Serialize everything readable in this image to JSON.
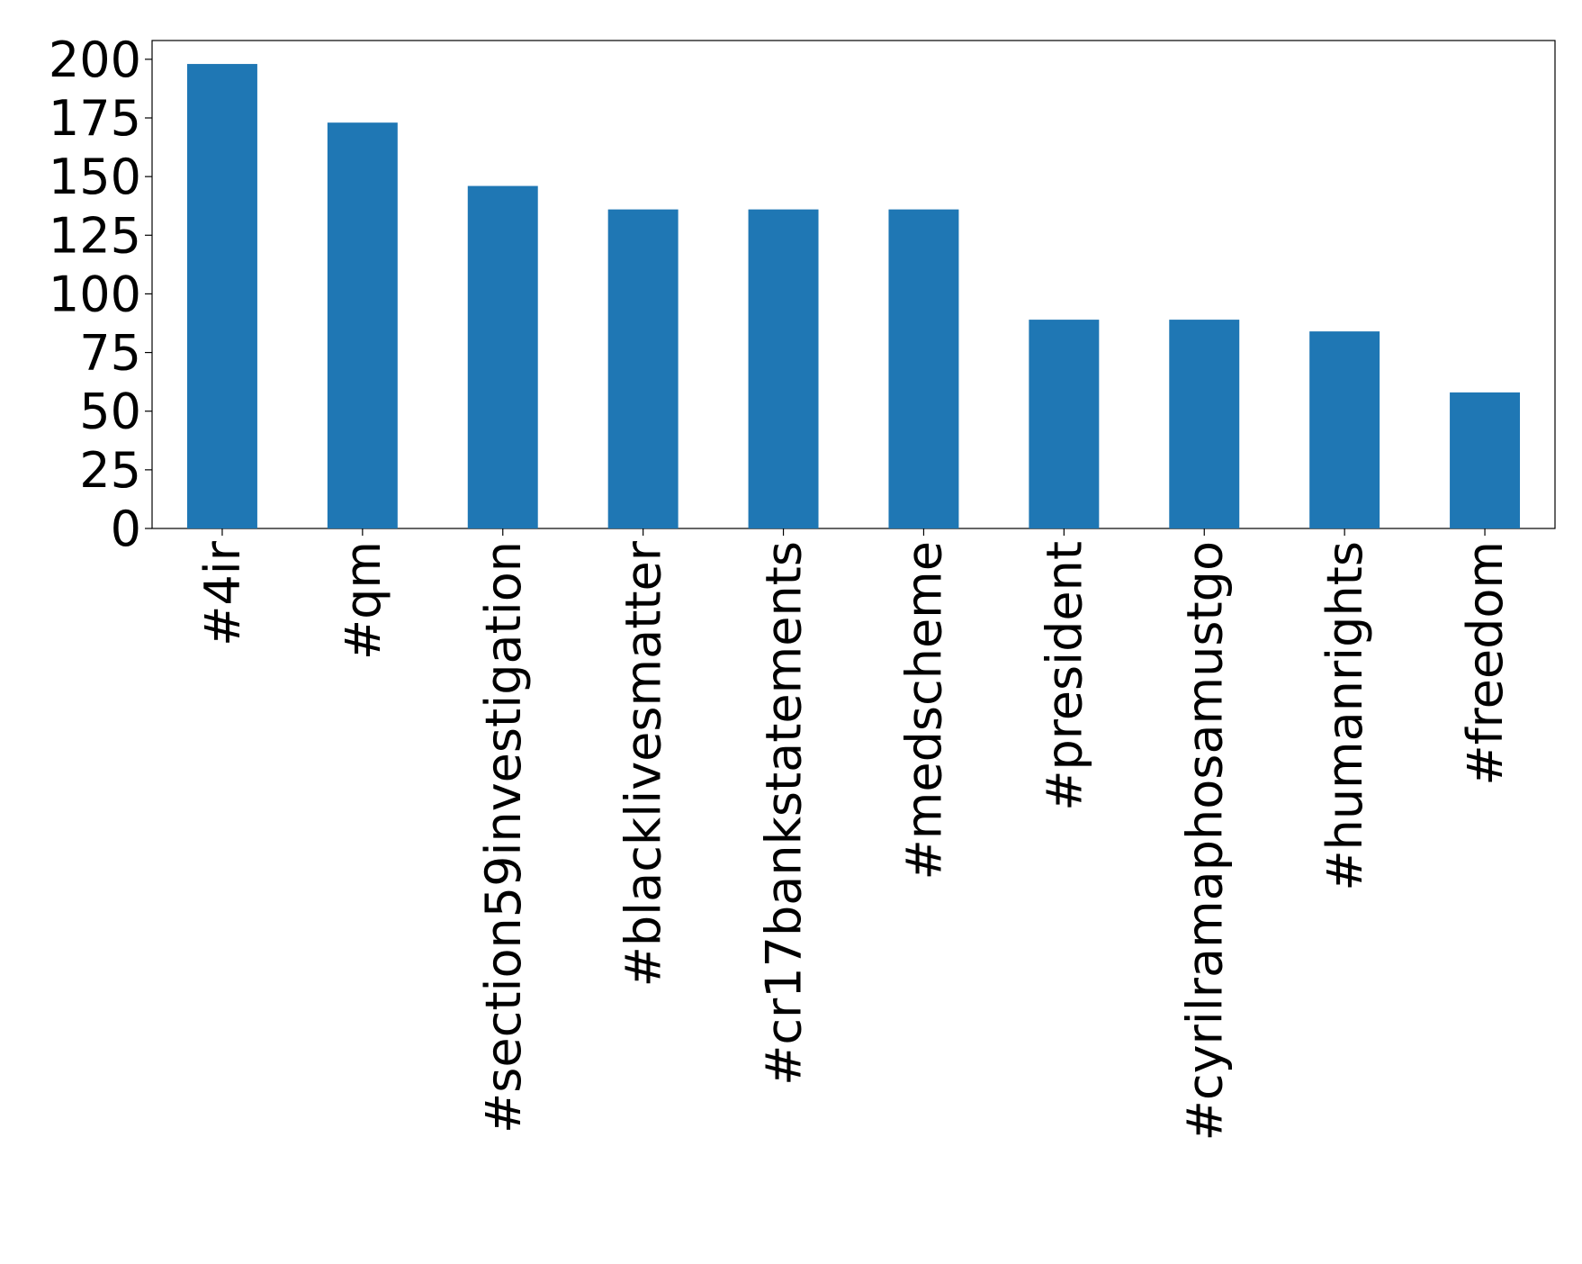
{
  "chart_data": {
    "type": "bar",
    "categories": [
      "#4ir",
      "#qm",
      "#section59investigation",
      "#blacklivesmatter",
      "#cr17bankstatements",
      "#medscheme",
      "#president",
      "#cyrilramaphosamustgo",
      "#humanrights",
      "#freedom"
    ],
    "values": [
      198,
      173,
      146,
      136,
      136,
      136,
      89,
      89,
      84,
      58
    ],
    "color": "#1f77b4",
    "ylim": [
      0,
      208
    ],
    "yticks": [
      0,
      25,
      50,
      75,
      100,
      125,
      150,
      175,
      200
    ],
    "grid": false
  }
}
